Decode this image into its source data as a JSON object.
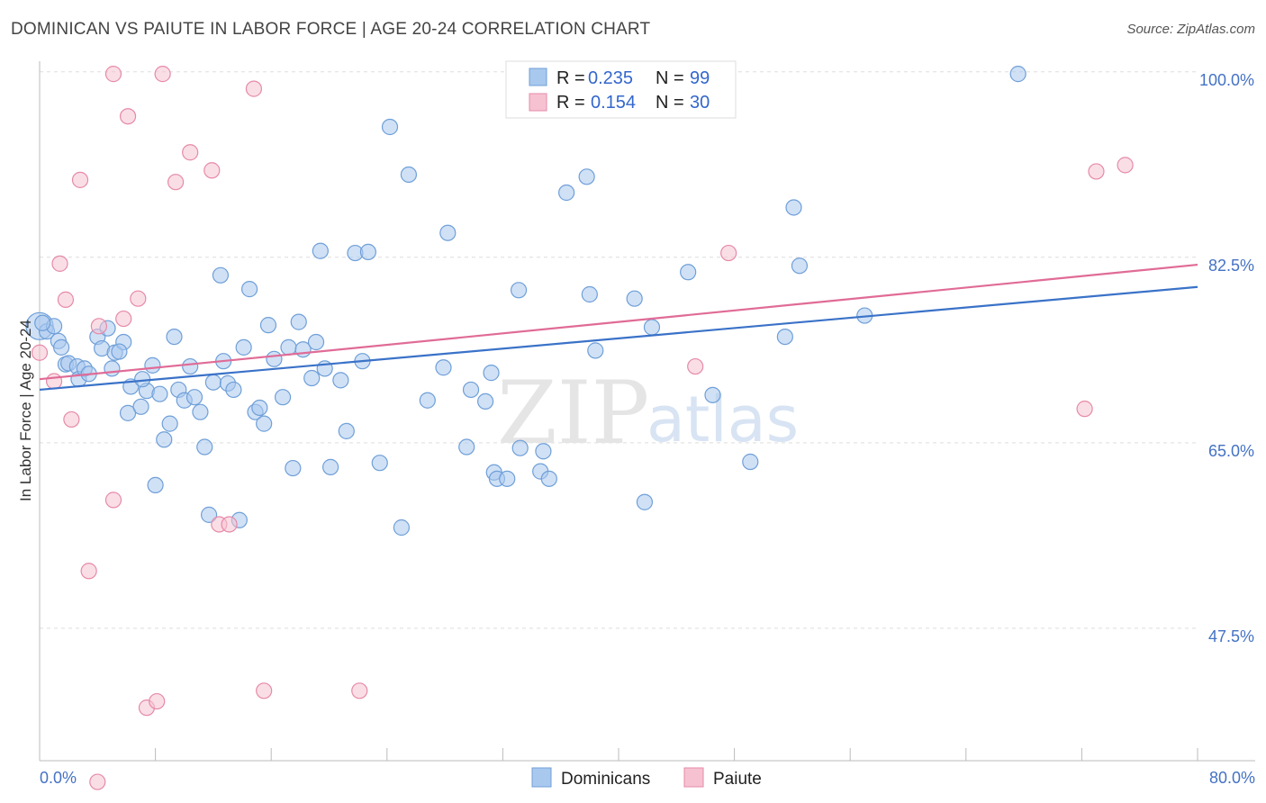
{
  "title": "DOMINICAN VS PAIUTE IN LABOR FORCE | AGE 20-24 CORRELATION CHART",
  "source": "Source: ZipAtlas.com",
  "colors": {
    "blue_fill": "#a9c8ee",
    "blue_stroke": "#6f9fd8",
    "blue_line": "#3a72c8",
    "pink_fill": "#f6c2d2",
    "pink_stroke": "#e68aa8",
    "pink_line": "#e06b96",
    "tick_text": "#4472c4",
    "grid": "#dddddd"
  },
  "chart_data": {
    "type": "scatter",
    "title": "DOMINICAN VS PAIUTE IN LABOR FORCE | AGE 20-24 CORRELATION CHART",
    "xlabel": "",
    "ylabel": "In Labor Force | Age 20-24",
    "xlim": [
      0,
      80
    ],
    "ylim": [
      35,
      101
    ],
    "x_tick_labels": [
      "0.0%",
      "80.0%"
    ],
    "y_ticks": [
      47.5,
      65.0,
      82.5,
      100.0
    ],
    "y_tick_labels": [
      "47.5%",
      "65.0%",
      "82.5%",
      "100.0%"
    ],
    "grid": true,
    "watermark": {
      "zip": "ZIP",
      "atlas": "atlas"
    },
    "legend": [
      {
        "r_label": "R =",
        "r_value": "0.235",
        "n_label": "N =",
        "n_value": "99"
      },
      {
        "r_label": "R =",
        "r_value": "0.154",
        "n_label": "N =",
        "n_value": "30"
      }
    ],
    "series": [
      {
        "name": "Dominicans",
        "trend": {
          "x": [
            0,
            80
          ],
          "y": [
            70.0,
            79.7
          ]
        },
        "points": [
          [
            0.0,
            76.0
          ],
          [
            0.5,
            75.5
          ],
          [
            1.0,
            76.0
          ],
          [
            1.3,
            74.6
          ],
          [
            1.5,
            74.0
          ],
          [
            1.8,
            72.4
          ],
          [
            2.0,
            72.5
          ],
          [
            2.6,
            72.2
          ],
          [
            2.7,
            71.0
          ],
          [
            3.1,
            72.0
          ],
          [
            3.4,
            71.5
          ],
          [
            4.0,
            75.0
          ],
          [
            4.3,
            73.9
          ],
          [
            4.7,
            75.8
          ],
          [
            5.0,
            72.0
          ],
          [
            5.2,
            73.5
          ],
          [
            5.8,
            74.5
          ],
          [
            6.1,
            67.8
          ],
          [
            6.3,
            70.3
          ],
          [
            7.0,
            68.4
          ],
          [
            7.4,
            69.9
          ],
          [
            7.8,
            72.3
          ],
          [
            8.0,
            61.0
          ],
          [
            8.3,
            69.6
          ],
          [
            8.6,
            65.3
          ],
          [
            9.0,
            66.8
          ],
          [
            9.3,
            75.0
          ],
          [
            9.6,
            70.0
          ],
          [
            10.0,
            69.0
          ],
          [
            10.4,
            72.2
          ],
          [
            10.7,
            69.3
          ],
          [
            11.1,
            67.9
          ],
          [
            11.4,
            64.6
          ],
          [
            11.7,
            58.2
          ],
          [
            12.0,
            70.7
          ],
          [
            12.5,
            80.8
          ],
          [
            12.7,
            72.7
          ],
          [
            13.0,
            70.6
          ],
          [
            13.4,
            70.0
          ],
          [
            13.8,
            57.7
          ],
          [
            14.1,
            74.0
          ],
          [
            14.5,
            79.5
          ],
          [
            14.9,
            67.9
          ],
          [
            15.2,
            68.3
          ],
          [
            15.5,
            66.8
          ],
          [
            15.8,
            76.1
          ],
          [
            16.2,
            72.9
          ],
          [
            16.8,
            69.3
          ],
          [
            17.2,
            74.0
          ],
          [
            17.5,
            62.6
          ],
          [
            17.9,
            76.4
          ],
          [
            18.2,
            73.8
          ],
          [
            18.8,
            71.1
          ],
          [
            19.1,
            74.5
          ],
          [
            19.4,
            83.1
          ],
          [
            19.7,
            72.0
          ],
          [
            20.1,
            62.7
          ],
          [
            20.8,
            70.9
          ],
          [
            21.2,
            66.1
          ],
          [
            21.8,
            82.9
          ],
          [
            22.3,
            72.7
          ],
          [
            22.7,
            83.0
          ],
          [
            23.5,
            63.1
          ],
          [
            24.2,
            94.8
          ],
          [
            25.0,
            57.0
          ],
          [
            25.5,
            90.3
          ],
          [
            26.8,
            69.0
          ],
          [
            27.9,
            72.1
          ],
          [
            28.2,
            84.8
          ],
          [
            29.5,
            64.6
          ],
          [
            29.8,
            70.0
          ],
          [
            30.8,
            68.9
          ],
          [
            31.2,
            71.6
          ],
          [
            31.4,
            62.2
          ],
          [
            31.6,
            61.6
          ],
          [
            32.3,
            61.6
          ],
          [
            33.1,
            79.4
          ],
          [
            33.2,
            64.5
          ],
          [
            34.6,
            62.3
          ],
          [
            34.8,
            64.2
          ],
          [
            35.2,
            61.6
          ],
          [
            36.4,
            88.6
          ],
          [
            37.8,
            90.1
          ],
          [
            38.0,
            79.0
          ],
          [
            38.4,
            73.7
          ],
          [
            41.1,
            78.6
          ],
          [
            41.8,
            59.4
          ],
          [
            42.3,
            75.9
          ],
          [
            44.8,
            81.1
          ],
          [
            46.5,
            69.5
          ],
          [
            49.1,
            63.2
          ],
          [
            51.5,
            75.0
          ],
          [
            52.1,
            87.2
          ],
          [
            52.5,
            81.7
          ],
          [
            57.0,
            77.0
          ],
          [
            67.6,
            99.8
          ],
          [
            0.2,
            76.3
          ],
          [
            5.5,
            73.6
          ],
          [
            7.1,
            71.0
          ]
        ]
      },
      {
        "name": "Paiute",
        "trend": {
          "x": [
            0,
            80
          ],
          "y": [
            71.0,
            81.8
          ]
        },
        "points": [
          [
            0.0,
            73.5
          ],
          [
            1.0,
            70.8
          ],
          [
            1.4,
            81.9
          ],
          [
            1.8,
            78.5
          ],
          [
            2.2,
            67.2
          ],
          [
            2.8,
            89.8
          ],
          [
            3.4,
            52.9
          ],
          [
            4.0,
            33.0
          ],
          [
            4.1,
            76.0
          ],
          [
            5.1,
            99.8
          ],
          [
            5.1,
            59.6
          ],
          [
            5.8,
            76.7
          ],
          [
            6.1,
            95.8
          ],
          [
            6.8,
            78.6
          ],
          [
            7.4,
            40.0
          ],
          [
            8.1,
            40.6
          ],
          [
            8.5,
            99.8
          ],
          [
            9.4,
            89.6
          ],
          [
            10.4,
            92.4
          ],
          [
            11.9,
            90.7
          ],
          [
            12.4,
            57.3
          ],
          [
            13.1,
            57.3
          ],
          [
            14.8,
            98.4
          ],
          [
            15.5,
            41.6
          ],
          [
            22.1,
            41.6
          ],
          [
            47.6,
            82.9
          ],
          [
            45.3,
            72.2
          ],
          [
            72.2,
            68.2
          ],
          [
            73.0,
            90.6
          ],
          [
            75.0,
            91.2
          ]
        ]
      }
    ]
  }
}
